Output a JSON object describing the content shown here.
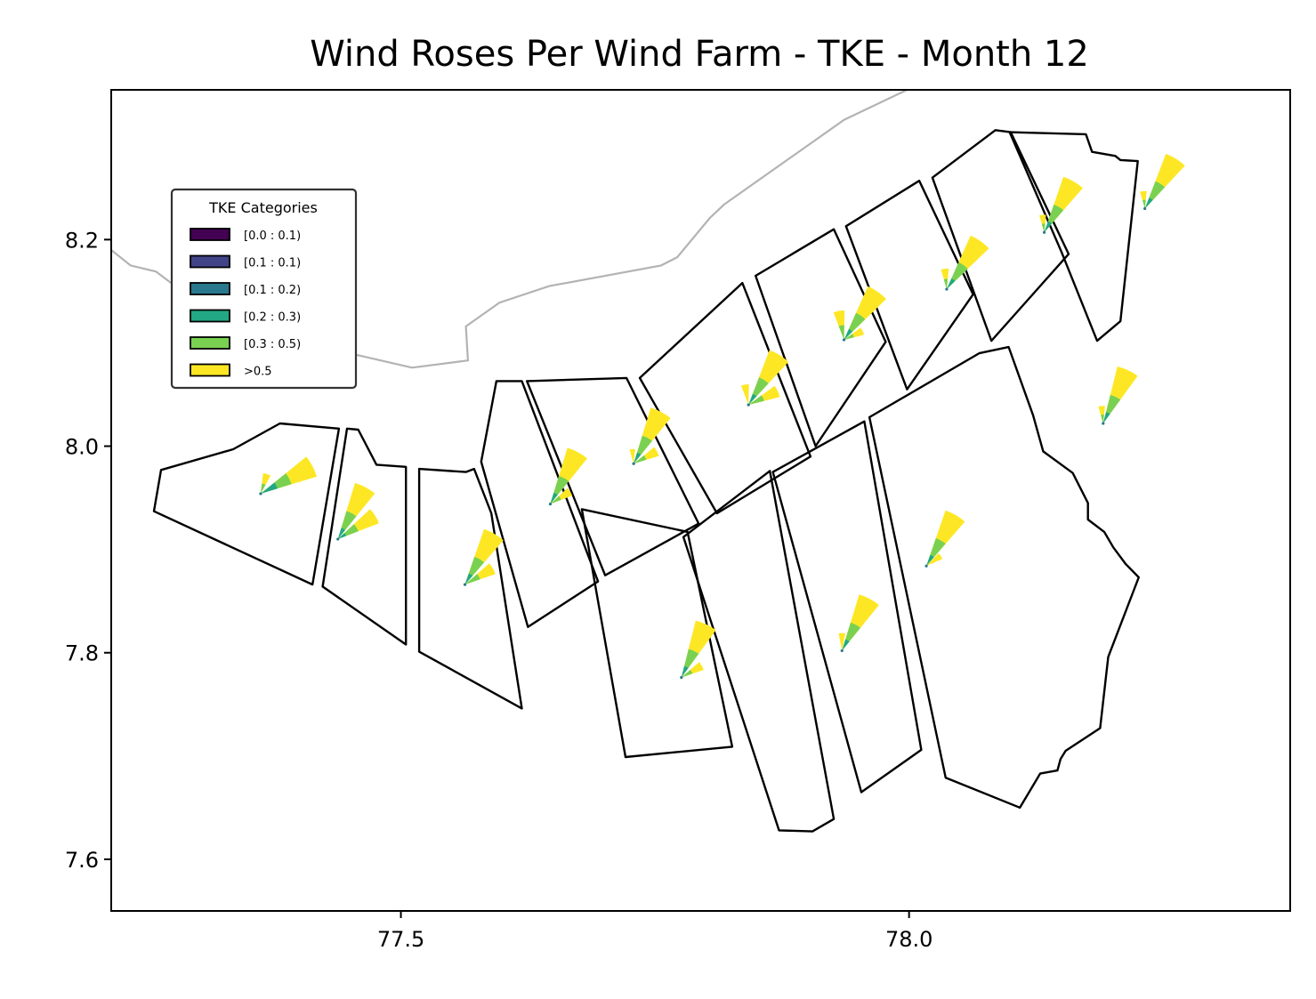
{
  "title": "Wind Roses Per Wind Farm - TKE - Month 12",
  "legend": {
    "title": "TKE Categories",
    "entries": [
      {
        "label": "[0.0 : 0.1)",
        "color": "#440154"
      },
      {
        "label": "[0.1 : 0.1)",
        "color": "#414487"
      },
      {
        "label": "[0.1 : 0.2)",
        "color": "#2a788e"
      },
      {
        "label": "[0.2 : 0.3)",
        "color": "#22a884"
      },
      {
        "label": "[0.3 : 0.5)",
        "color": "#7ad151"
      },
      {
        "label": ">0.5",
        "color": "#fde725"
      }
    ]
  },
  "chart_data": {
    "type": "map",
    "xlim": [
      77.215,
      78.375
    ],
    "ylim": [
      7.55,
      8.345
    ],
    "xticks": [
      {
        "value": 77.5,
        "label": "77.5"
      },
      {
        "value": 78.0,
        "label": "78.0"
      }
    ],
    "yticks": [
      {
        "value": 7.6,
        "label": "7.6"
      },
      {
        "value": 7.8,
        "label": "7.8"
      },
      {
        "value": 8.0,
        "label": "8.0"
      },
      {
        "value": 8.2,
        "label": "8.2"
      }
    ],
    "coastline": [
      [
        77.215,
        8.19
      ],
      [
        77.234,
        8.175
      ],
      [
        77.259,
        8.169
      ],
      [
        77.282,
        8.152
      ],
      [
        77.318,
        8.134
      ],
      [
        77.371,
        8.114
      ],
      [
        77.436,
        8.093
      ],
      [
        77.511,
        8.076
      ],
      [
        77.566,
        8.083
      ],
      [
        77.564,
        8.116
      ],
      [
        77.597,
        8.139
      ],
      [
        77.646,
        8.155
      ],
      [
        77.756,
        8.175
      ],
      [
        77.772,
        8.183
      ],
      [
        77.804,
        8.221
      ],
      [
        77.818,
        8.234
      ],
      [
        77.936,
        8.316
      ],
      [
        77.998,
        8.345
      ]
    ],
    "farms": [
      {
        "polygon": [
          [
            77.264,
            7.977
          ],
          [
            77.335,
            7.997
          ],
          [
            77.381,
            8.022
          ],
          [
            77.439,
            8.017
          ],
          [
            77.413,
            7.866
          ],
          [
            77.257,
            7.937
          ]
        ],
        "rose_center": [
          77.362,
          7.954
        ],
        "petals": [
          {
            "direction": 62,
            "segments": [
              [
                0.3,
                "#22a884"
              ],
              [
                0.55,
                "#7ad151"
              ],
              [
                1.0,
                "#fde725"
              ]
            ]
          },
          {
            "direction": 18,
            "segments": [
              [
                0.5,
                "#7ad151"
              ],
              [
                1.0,
                "#fde725"
              ]
            ],
            "length": 0.35
          }
        ]
      },
      {
        "polygon": [
          [
            77.447,
            8.017
          ],
          [
            77.458,
            8.016
          ],
          [
            77.476,
            7.982
          ],
          [
            77.505,
            7.98
          ],
          [
            77.505,
            7.808
          ],
          [
            77.423,
            7.864
          ]
        ],
        "rose_center": [
          77.438,
          7.91
        ],
        "petals": [
          {
            "direction": 28,
            "segments": [
              [
                0.2,
                "#22a884"
              ],
              [
                0.5,
                "#7ad151"
              ],
              [
                1.0,
                "#fde725"
              ]
            ]
          },
          {
            "direction": 58,
            "segments": [
              [
                0.2,
                "#22a884"
              ],
              [
                0.5,
                "#7ad151"
              ],
              [
                1.0,
                "#fde725"
              ]
            ],
            "length": 0.75
          }
        ]
      },
      {
        "polygon": [
          [
            77.518,
            7.978
          ],
          [
            77.564,
            7.975
          ],
          [
            77.572,
            7.978
          ],
          [
            77.589,
            7.935
          ],
          [
            77.619,
            7.746
          ],
          [
            77.518,
            7.801
          ]
        ],
        "rose_center": [
          77.563,
          7.866
        ],
        "petals": [
          {
            "direction": 30,
            "segments": [
              [
                0.2,
                "#22a884"
              ],
              [
                0.5,
                "#7ad151"
              ],
              [
                1.0,
                "#fde725"
              ]
            ]
          },
          {
            "direction": 60,
            "segments": [
              [
                0.5,
                "#7ad151"
              ],
              [
                1.0,
                "#fde725"
              ]
            ],
            "length": 0.55
          }
        ]
      },
      {
        "polygon": [
          [
            77.594,
            8.063
          ],
          [
            77.619,
            8.063
          ],
          [
            77.694,
            7.869
          ],
          [
            77.625,
            7.825
          ],
          [
            77.579,
            7.985
          ]
        ],
        "rose_center": [
          77.647,
          7.944
        ],
        "petals": [
          {
            "direction": 28,
            "segments": [
              [
                0.2,
                "#22a884"
              ],
              [
                0.5,
                "#7ad151"
              ],
              [
                1.0,
                "#fde725"
              ]
            ]
          },
          {
            "direction": 58,
            "segments": [
              [
                0.5,
                "#7ad151"
              ],
              [
                1.0,
                "#fde725"
              ]
            ],
            "length": 0.4
          }
        ]
      },
      {
        "polygon": [
          [
            77.624,
            8.063
          ],
          [
            77.722,
            8.066
          ],
          [
            77.793,
            7.925
          ],
          [
            77.701,
            7.875
          ]
        ],
        "rose_center": [
          77.729,
          7.983
        ],
        "petals": [
          {
            "direction": 28,
            "segments": [
              [
                0.2,
                "#22a884"
              ],
              [
                0.5,
                "#7ad151"
              ],
              [
                1.0,
                "#fde725"
              ]
            ]
          },
          {
            "direction": 62,
            "segments": [
              [
                0.5,
                "#7ad151"
              ],
              [
                1.0,
                "#fde725"
              ]
            ],
            "length": 0.45
          },
          {
            "direction": -5,
            "segments": [
              [
                1.0,
                "#fde725"
              ]
            ],
            "length": 0.25
          }
        ]
      },
      {
        "polygon": [
          [
            77.735,
            8.066
          ],
          [
            77.836,
            8.158
          ],
          [
            77.903,
            7.99
          ],
          [
            77.811,
            7.935
          ]
        ],
        "rose_center": [
          77.842,
          8.04
        ],
        "petals": [
          {
            "direction": 32,
            "segments": [
              [
                0.2,
                "#22a884"
              ],
              [
                0.5,
                "#7ad151"
              ],
              [
                1.0,
                "#fde725"
              ]
            ]
          },
          {
            "direction": 65,
            "segments": [
              [
                0.5,
                "#7ad151"
              ],
              [
                1.0,
                "#fde725"
              ]
            ],
            "length": 0.55
          },
          {
            "direction": -10,
            "segments": [
              [
                1.0,
                "#fde725"
              ]
            ],
            "length": 0.35
          }
        ]
      },
      {
        "polygon": [
          [
            77.849,
            8.165
          ],
          [
            77.926,
            8.21
          ],
          [
            77.977,
            8.101
          ],
          [
            77.908,
            8.0
          ]
        ],
        "rose_center": [
          77.936,
          8.103
        ],
        "petals": [
          {
            "direction": 35,
            "segments": [
              [
                0.2,
                "#22a884"
              ],
              [
                0.5,
                "#7ad151"
              ],
              [
                1.0,
                "#fde725"
              ]
            ]
          },
          {
            "direction": -10,
            "segments": [
              [
                0.5,
                "#7ad151"
              ],
              [
                1.0,
                "#fde725"
              ]
            ],
            "length": 0.5
          },
          {
            "direction": 65,
            "segments": [
              [
                0.5,
                "#7ad151"
              ],
              [
                1.0,
                "#fde725"
              ]
            ],
            "length": 0.35
          }
        ]
      },
      {
        "polygon": [
          [
            77.938,
            8.213
          ],
          [
            78.01,
            8.257
          ],
          [
            78.063,
            8.147
          ],
          [
            77.998,
            8.055
          ]
        ],
        "rose_center": [
          78.037,
          8.152
        ],
        "petals": [
          {
            "direction": 35,
            "segments": [
              [
                0.2,
                "#22a884"
              ],
              [
                0.5,
                "#7ad151"
              ],
              [
                1.0,
                "#fde725"
              ]
            ]
          },
          {
            "direction": -5,
            "segments": [
              [
                0.5,
                "#7ad151"
              ],
              [
                1.0,
                "#fde725"
              ]
            ],
            "length": 0.35
          }
        ]
      },
      {
        "polygon": [
          [
            78.023,
            8.26
          ],
          [
            78.085,
            8.306
          ],
          [
            78.1,
            8.304
          ],
          [
            78.157,
            8.186
          ],
          [
            78.081,
            8.102
          ]
        ],
        "rose_center": [
          78.133,
          8.207
        ],
        "petals": [
          {
            "direction": 30,
            "segments": [
              [
                0.2,
                "#22a884"
              ],
              [
                0.5,
                "#7ad151"
              ],
              [
                1.0,
                "#fde725"
              ]
            ]
          },
          {
            "direction": -5,
            "segments": [
              [
                0.5,
                "#7ad151"
              ],
              [
                1.0,
                "#fde725"
              ]
            ],
            "length": 0.3
          }
        ]
      },
      {
        "polygon": [
          [
            78.099,
            8.304
          ],
          [
            78.174,
            8.302
          ],
          [
            78.18,
            8.285
          ],
          [
            78.203,
            8.281
          ],
          [
            78.208,
            8.277
          ],
          [
            78.225,
            8.276
          ],
          [
            78.208,
            8.121
          ],
          [
            78.185,
            8.102
          ],
          [
            78.15,
            8.188
          ]
        ],
        "rose_center": [
          78.232,
          8.23
        ],
        "petals": [
          {
            "direction": 32,
            "segments": [
              [
                0.2,
                "#22a884"
              ],
              [
                0.5,
                "#7ad151"
              ],
              [
                1.0,
                "#fde725"
              ]
            ]
          },
          {
            "direction": -5,
            "segments": [
              [
                0.5,
                "#7ad151"
              ],
              [
                1.0,
                "#fde725"
              ]
            ],
            "length": 0.3
          }
        ]
      }
    ],
    "farms_south": [
      {
        "polygon": [
          [
            77.678,
            7.939
          ],
          [
            77.782,
            7.917
          ],
          [
            77.826,
            7.709
          ],
          [
            77.721,
            7.699
          ]
        ],
        "rose_center": [
          77.776,
          7.776
        ],
        "petals": [
          {
            "direction": 25,
            "segments": [
              [
                0.2,
                "#22a884"
              ],
              [
                0.5,
                "#7ad151"
              ],
              [
                1.0,
                "#fde725"
              ]
            ]
          },
          {
            "direction": 60,
            "segments": [
              [
                0.5,
                "#7ad151"
              ],
              [
                1.0,
                "#fde725"
              ]
            ],
            "length": 0.4
          }
        ]
      },
      {
        "polygon": [
          [
            77.778,
            7.912
          ],
          [
            77.863,
            7.976
          ],
          [
            77.926,
            7.639
          ],
          [
            77.905,
            7.627
          ],
          [
            77.872,
            7.628
          ]
        ],
        "rose_center": [
          77.934,
          7.802
        ],
        "petals": [
          {
            "direction": 28,
            "segments": [
              [
                0.2,
                "#22a884"
              ],
              [
                0.5,
                "#7ad151"
              ],
              [
                1.0,
                "#fde725"
              ]
            ]
          },
          {
            "direction": 0,
            "segments": [
              [
                1.0,
                "#fde725"
              ]
            ],
            "length": 0.3
          }
        ]
      },
      {
        "polygon": [
          [
            77.866,
            7.975
          ],
          [
            77.956,
            8.024
          ],
          [
            78.012,
            7.706
          ],
          [
            77.953,
            7.665
          ]
        ],
        "rose_center": [
          78.017,
          7.884
        ],
        "petals": [
          {
            "direction": 30,
            "segments": [
              [
                0.2,
                "#22a884"
              ],
              [
                0.5,
                "#7ad151"
              ],
              [
                1.0,
                "#fde725"
              ]
            ]
          },
          {
            "direction": 55,
            "segments": [
              [
                1.0,
                "#fde725"
              ]
            ],
            "length": 0.3
          }
        ]
      },
      {
        "polygon": [
          [
            77.961,
            8.028
          ],
          [
            78.069,
            8.09
          ],
          [
            78.098,
            8.096
          ],
          [
            78.122,
            8.03
          ],
          [
            78.132,
            7.995
          ],
          [
            78.161,
            7.974
          ],
          [
            78.176,
            7.945
          ],
          [
            78.176,
            7.929
          ],
          [
            78.192,
            7.917
          ],
          [
            78.201,
            7.902
          ],
          [
            78.213,
            7.886
          ],
          [
            78.226,
            7.873
          ],
          [
            78.196,
            7.796
          ],
          [
            78.188,
            7.727
          ],
          [
            78.154,
            7.705
          ],
          [
            78.149,
            7.697
          ],
          [
            78.146,
            7.686
          ],
          [
            78.129,
            7.683
          ],
          [
            78.109,
            7.65
          ],
          [
            78.036,
            7.679
          ]
        ],
        "rose_center": [
          78.191,
          8.022
        ],
        "petals": [
          {
            "direction": 25,
            "segments": [
              [
                0.2,
                "#22a884"
              ],
              [
                0.5,
                "#7ad151"
              ],
              [
                1.0,
                "#fde725"
              ]
            ]
          },
          {
            "direction": -5,
            "segments": [
              [
                0.5,
                "#7ad151"
              ],
              [
                1.0,
                "#fde725"
              ]
            ],
            "length": 0.3
          }
        ]
      }
    ]
  }
}
